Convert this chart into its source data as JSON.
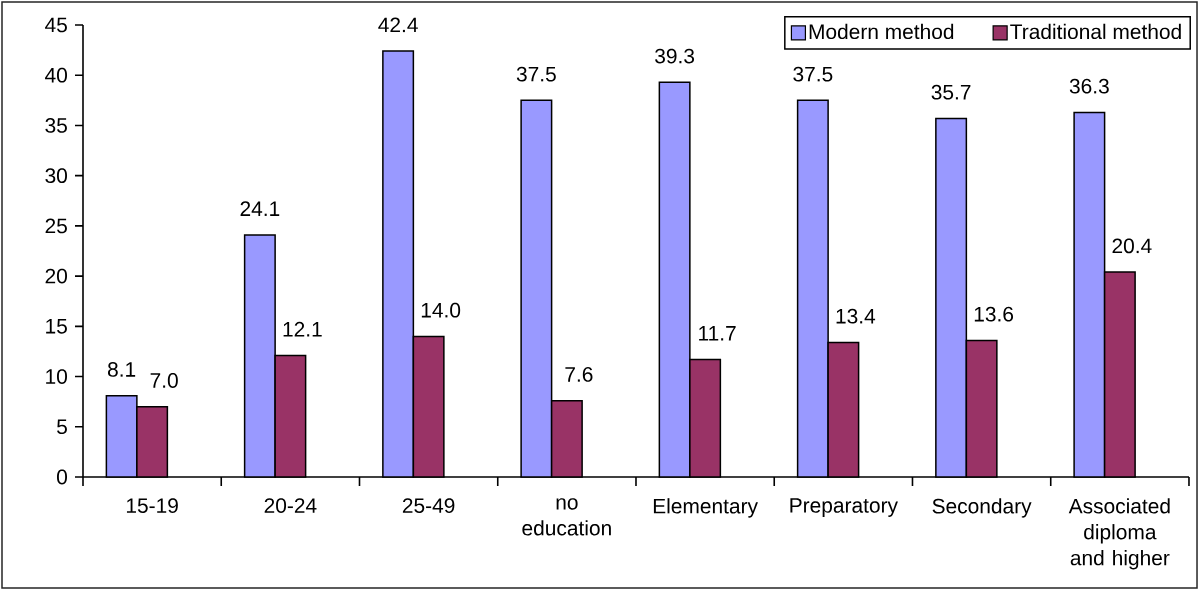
{
  "chart_data": {
    "type": "bar",
    "categories": [
      "15-19",
      "20-24",
      "25-49",
      "no education",
      "Elementary",
      "Preparatory",
      "Secondary",
      "Associated diploma and higher"
    ],
    "series": [
      {
        "name": "Modern method",
        "color": "#9999ff",
        "values": [
          8.1,
          24.1,
          42.4,
          37.5,
          39.3,
          37.5,
          35.7,
          36.3
        ],
        "value_labels": [
          "8.1",
          "24.1",
          "42.4",
          "37.5",
          "39.3",
          "37.5",
          "35.7",
          "36.3"
        ]
      },
      {
        "name": "Traditional method",
        "color": "#993366",
        "values": [
          7.0,
          12.1,
          14.0,
          7.6,
          11.7,
          13.4,
          13.6,
          20.4
        ],
        "value_labels": [
          "7.0",
          "12.1",
          "14.0",
          "7.6",
          "11.7",
          "13.4",
          "13.6",
          "20.4"
        ]
      }
    ],
    "ylim": [
      0,
      45
    ],
    "yticks": [
      0,
      5,
      10,
      15,
      20,
      25,
      30,
      35,
      40,
      45
    ],
    "legend": "top right"
  }
}
